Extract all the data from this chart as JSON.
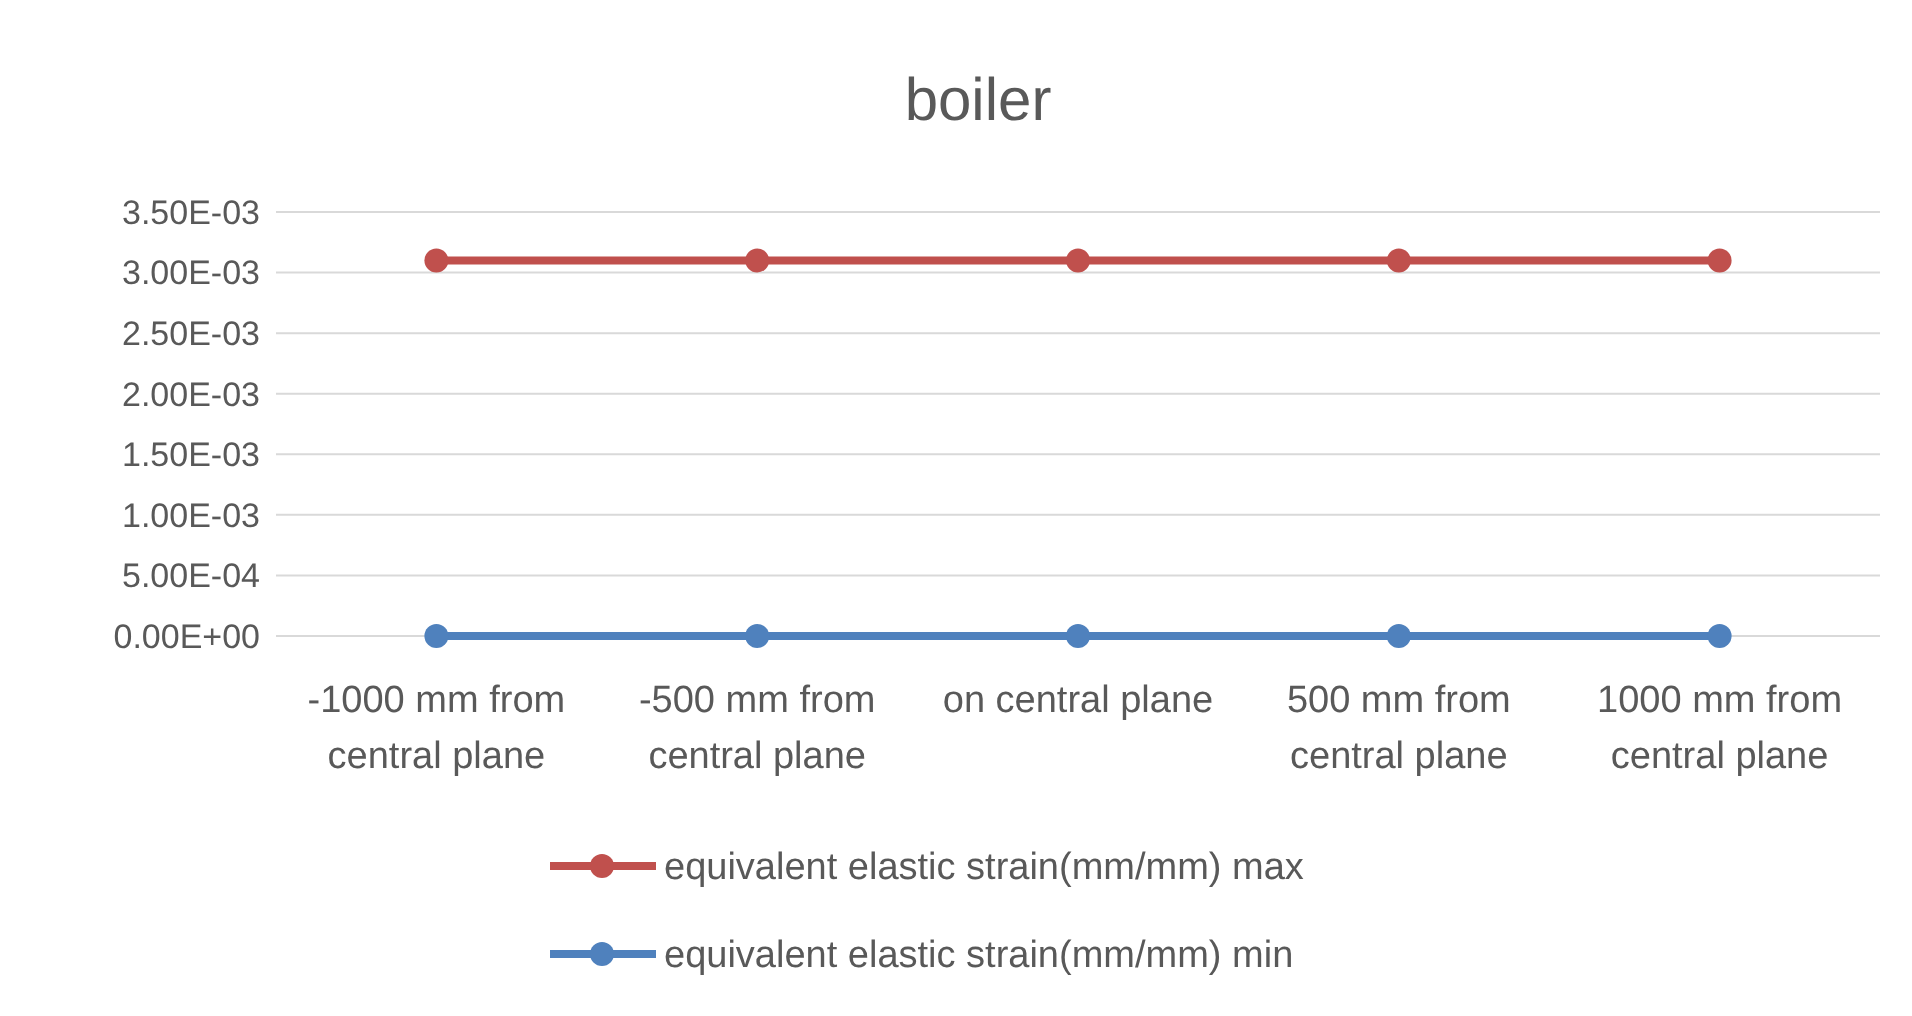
{
  "chart_data": {
    "type": "line",
    "title": "boiler",
    "categories": [
      "-1000 mm from central plane",
      "-500 mm from central plane",
      "on central plane",
      "500 mm from central plane",
      "1000 mm from central plane"
    ],
    "series": [
      {
        "name": "equivalent elastic strain(mm/mm) max",
        "color": "#c0504d",
        "values": [
          0.0031,
          0.0031,
          0.0031,
          0.0031,
          0.0031
        ]
      },
      {
        "name": "equivalent elastic strain(mm/mm) min",
        "color": "#4f81bd",
        "values": [
          0,
          0,
          0,
          0,
          0
        ]
      }
    ],
    "ylim": [
      0,
      0.0035
    ],
    "yticks": [
      {
        "value": 0,
        "label": "0.00E+00"
      },
      {
        "value": 0.0005,
        "label": "5.00E-04"
      },
      {
        "value": 0.001,
        "label": "1.00E-03"
      },
      {
        "value": 0.0015,
        "label": "1.50E-03"
      },
      {
        "value": 0.002,
        "label": "2.00E-03"
      },
      {
        "value": 0.0025,
        "label": "2.50E-03"
      },
      {
        "value": 0.003,
        "label": "3.00E-03"
      },
      {
        "value": 0.0035,
        "label": "3.50E-03"
      }
    ],
    "grid": "y",
    "legend": "bottom",
    "marker": "circle",
    "line_style": "solid"
  }
}
